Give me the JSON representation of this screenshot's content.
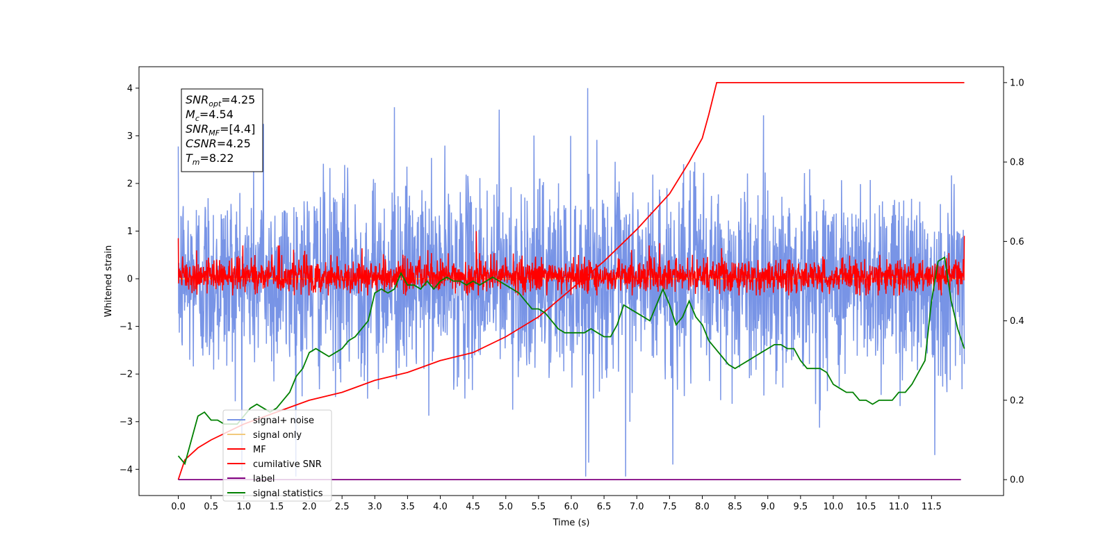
{
  "chart_data": {
    "type": "line",
    "xlabel": "Time (s)",
    "ylabel": "Whitened strain",
    "xlim": [
      -0.6,
      12.6
    ],
    "ylim": [
      -4.55,
      4.45
    ],
    "y2lim": [
      -0.04,
      1.04
    ],
    "x_ticks": [
      0.0,
      0.5,
      1.0,
      1.5,
      2.0,
      2.5,
      3.0,
      3.5,
      4.0,
      4.5,
      5.0,
      5.5,
      6.0,
      6.5,
      7.0,
      7.5,
      8.0,
      8.5,
      9.0,
      9.5,
      10.0,
      10.5,
      11.0,
      11.5
    ],
    "x_tick_labels": [
      "0.0",
      "0.5",
      "1.0",
      "1.5",
      "2.0",
      "2.5",
      "3.0",
      "3.5",
      "4.0",
      "4.5",
      "5.0",
      "5.5",
      "6.0",
      "6.5",
      "7.0",
      "7.5",
      "8.0",
      "8.5",
      "9.0",
      "9.5",
      "10.0",
      "10.5",
      "11.0",
      "11.5"
    ],
    "y_ticks": [
      4,
      3,
      2,
      1,
      0,
      -1,
      -2,
      -3,
      -4
    ],
    "y_tick_labels": [
      "4",
      "3",
      "2",
      "1",
      "0",
      "−1",
      "−2",
      "−3",
      "−4"
    ],
    "y2_ticks": [
      1.0,
      0.8,
      0.6,
      0.4,
      0.2,
      0.0
    ],
    "y2_tick_labels": [
      "1.0",
      "0.8",
      "0.6",
      "0.4",
      "0.2",
      "0.0"
    ],
    "grid": false,
    "legend_position": "bottom-left",
    "annotation": {
      "lines": [
        {
          "name": "SNR",
          "sub": "opt",
          "value": "=4.25"
        },
        {
          "name": "M",
          "sub": "c",
          "value": "=4.54"
        },
        {
          "name": "SNR",
          "sub": "MF",
          "value": "=[4.4]"
        },
        {
          "name": "CSNR",
          "sub": "",
          "value": "=4.25"
        },
        {
          "name": "T",
          "sub": "m",
          "value": "=8.22"
        }
      ]
    },
    "noise_series": {
      "x_range": [
        0.0,
        12.0
      ],
      "approx_envelope": {
        "max": 4.0,
        "min": -4.15
      },
      "approx_std": 1.0,
      "spikes": [
        [
          6.25,
          4.0
        ],
        [
          6.22,
          -4.15
        ],
        [
          6.83,
          -4.15
        ],
        [
          4.9,
          3.55
        ],
        [
          3.3,
          3.6
        ],
        [
          1.3,
          3.25
        ],
        [
          7.55,
          -3.9
        ],
        [
          11.55,
          -3.7
        ]
      ]
    },
    "mf_series": {
      "x_range": [
        0.0,
        12.0
      ],
      "approx_envelope": {
        "max": 0.95,
        "min": -0.35
      },
      "spikes": [
        [
          0.0,
          0.85
        ],
        [
          4.55,
          1.0
        ],
        [
          12.0,
          0.9
        ],
        [
          7.35,
          0.75
        ]
      ]
    },
    "series": [
      {
        "name": "signal+ noise",
        "color": "#7894e6",
        "axis": "left",
        "kind": "noise"
      },
      {
        "name": "signal only",
        "color": "#f2c97c",
        "axis": "left",
        "kind": "flat",
        "x": [
          0.0,
          12.0
        ],
        "y": [
          0.0,
          0.0
        ]
      },
      {
        "name": "MF",
        "color": "#ff0000",
        "axis": "left",
        "kind": "mf"
      },
      {
        "name": "cumilative SNR",
        "color": "#ff0000",
        "axis": "right",
        "kind": "curve",
        "x": [
          0.0,
          0.1,
          0.3,
          0.5,
          1.0,
          1.5,
          2.0,
          2.5,
          3.0,
          3.5,
          4.0,
          4.5,
          5.0,
          5.5,
          6.0,
          6.5,
          7.0,
          7.5,
          7.8,
          8.0,
          8.1,
          8.22,
          12.0
        ],
        "y": [
          0.0,
          0.05,
          0.08,
          0.1,
          0.14,
          0.17,
          0.2,
          0.22,
          0.25,
          0.27,
          0.3,
          0.32,
          0.36,
          0.41,
          0.48,
          0.55,
          0.63,
          0.72,
          0.8,
          0.86,
          0.92,
          1.0,
          1.0
        ]
      },
      {
        "name": "label",
        "color": "#800080",
        "axis": "right",
        "kind": "curve",
        "x": [
          0.0,
          11.95
        ],
        "y": [
          0.0,
          0.0
        ]
      },
      {
        "name": "signal statistics",
        "color": "#008000",
        "axis": "right",
        "kind": "curve",
        "x": [
          0.0,
          0.1,
          0.2,
          0.3,
          0.4,
          0.5,
          0.6,
          0.7,
          0.8,
          0.9,
          1.0,
          1.1,
          1.2,
          1.3,
          1.4,
          1.5,
          1.6,
          1.7,
          1.8,
          1.9,
          2.0,
          2.1,
          2.2,
          2.3,
          2.4,
          2.5,
          2.6,
          2.7,
          2.8,
          2.9,
          3.0,
          3.1,
          3.2,
          3.3,
          3.4,
          3.5,
          3.6,
          3.7,
          3.8,
          3.9,
          4.0,
          4.1,
          4.2,
          4.3,
          4.4,
          4.5,
          4.6,
          4.7,
          4.8,
          4.9,
          5.0,
          5.1,
          5.2,
          5.3,
          5.4,
          5.5,
          5.6,
          5.7,
          5.8,
          5.9,
          6.0,
          6.1,
          6.2,
          6.3,
          6.4,
          6.5,
          6.6,
          6.7,
          6.8,
          6.9,
          7.0,
          7.1,
          7.2,
          7.3,
          7.4,
          7.5,
          7.6,
          7.7,
          7.8,
          7.9,
          8.0,
          8.1,
          8.2,
          8.3,
          8.4,
          8.5,
          8.6,
          8.7,
          8.8,
          8.9,
          9.0,
          9.1,
          9.2,
          9.3,
          9.4,
          9.5,
          9.6,
          9.7,
          9.8,
          9.9,
          10.0,
          10.1,
          10.2,
          10.3,
          10.4,
          10.5,
          10.6,
          10.7,
          10.8,
          10.9,
          11.0,
          11.1,
          11.2,
          11.3,
          11.4,
          11.5,
          11.6,
          11.7,
          11.8,
          11.9,
          12.0
        ],
        "y": [
          0.06,
          0.04,
          0.1,
          0.16,
          0.17,
          0.15,
          0.15,
          0.14,
          0.14,
          0.14,
          0.16,
          0.18,
          0.19,
          0.18,
          0.17,
          0.18,
          0.2,
          0.22,
          0.26,
          0.28,
          0.32,
          0.33,
          0.32,
          0.31,
          0.32,
          0.33,
          0.35,
          0.36,
          0.38,
          0.4,
          0.47,
          0.48,
          0.47,
          0.48,
          0.52,
          0.49,
          0.49,
          0.48,
          0.5,
          0.48,
          0.5,
          0.51,
          0.5,
          0.5,
          0.49,
          0.5,
          0.49,
          0.5,
          0.51,
          0.5,
          0.49,
          0.48,
          0.47,
          0.45,
          0.43,
          0.43,
          0.42,
          0.4,
          0.38,
          0.37,
          0.37,
          0.37,
          0.37,
          0.38,
          0.37,
          0.36,
          0.36,
          0.39,
          0.44,
          0.43,
          0.42,
          0.41,
          0.4,
          0.44,
          0.48,
          0.44,
          0.39,
          0.41,
          0.45,
          0.41,
          0.39,
          0.35,
          0.33,
          0.31,
          0.29,
          0.28,
          0.29,
          0.3,
          0.31,
          0.32,
          0.33,
          0.34,
          0.34,
          0.33,
          0.33,
          0.3,
          0.28,
          0.28,
          0.28,
          0.27,
          0.24,
          0.23,
          0.22,
          0.22,
          0.2,
          0.2,
          0.19,
          0.2,
          0.2,
          0.2,
          0.22,
          0.22,
          0.24,
          0.27,
          0.3,
          0.45,
          0.55,
          0.56,
          0.45,
          0.38,
          0.33
        ]
      }
    ]
  }
}
